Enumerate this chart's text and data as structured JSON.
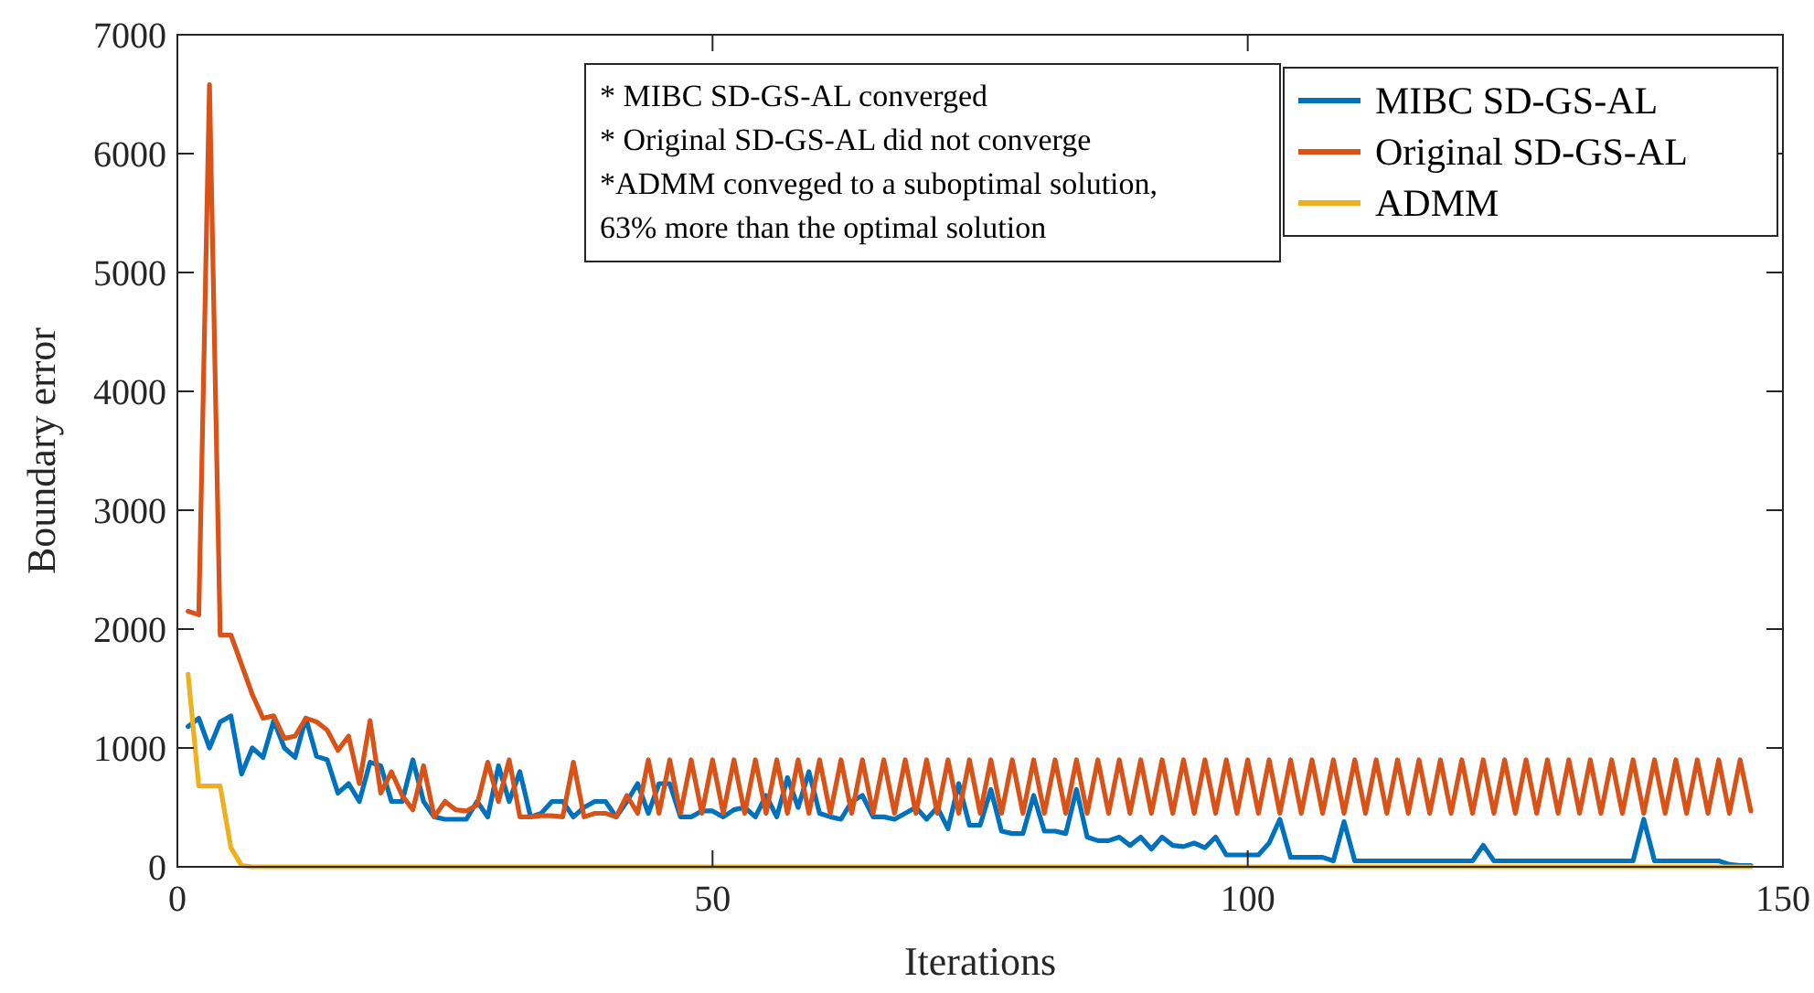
{
  "chart_data": {
    "type": "line",
    "xlabel": "Iterations",
    "ylabel": "Boundary error",
    "xlim": [
      0,
      150
    ],
    "xticks": [
      0,
      50,
      100,
      150
    ],
    "ylim": [
      0,
      7000
    ],
    "yticks": [
      0,
      1000,
      2000,
      3000,
      4000,
      5000,
      6000,
      7000
    ],
    "grid": false,
    "legend": "top right",
    "line_style": "solid",
    "marker": "none",
    "x": [
      1,
      2,
      3,
      4,
      5,
      6,
      7,
      8,
      9,
      10,
      11,
      12,
      13,
      14,
      15,
      16,
      17,
      18,
      19,
      20,
      21,
      22,
      23,
      24,
      25,
      26,
      27,
      28,
      29,
      30,
      31,
      32,
      33,
      34,
      35,
      36,
      37,
      38,
      39,
      40,
      41,
      42,
      43,
      44,
      45,
      46,
      47,
      48,
      49,
      50,
      51,
      52,
      53,
      54,
      55,
      56,
      57,
      58,
      59,
      60,
      61,
      62,
      63,
      64,
      65,
      66,
      67,
      68,
      69,
      70,
      71,
      72,
      73,
      74,
      75,
      76,
      77,
      78,
      79,
      80,
      81,
      82,
      83,
      84,
      85,
      86,
      87,
      88,
      89,
      90,
      91,
      92,
      93,
      94,
      95,
      96,
      97,
      98,
      99,
      100,
      101,
      102,
      103,
      104,
      105,
      106,
      107,
      108,
      109,
      110,
      111,
      112,
      113,
      114,
      115,
      116,
      117,
      118,
      119,
      120,
      121,
      122,
      123,
      124,
      125,
      126,
      127,
      128,
      129,
      130,
      131,
      132,
      133,
      134,
      135,
      136,
      137,
      138,
      139,
      140,
      141,
      142,
      143,
      144,
      145,
      146,
      147
    ],
    "series": [
      {
        "name": "MIBC SD-GS-AL",
        "color": "#0072bd",
        "values": [
          1180,
          1250,
          1000,
          1220,
          1270,
          780,
          1000,
          920,
          1230,
          1000,
          920,
          1250,
          930,
          900,
          620,
          700,
          550,
          880,
          850,
          550,
          550,
          900,
          550,
          420,
          400,
          400,
          400,
          550,
          420,
          850,
          550,
          800,
          420,
          450,
          550,
          550,
          420,
          500,
          550,
          550,
          420,
          550,
          700,
          450,
          700,
          700,
          420,
          420,
          470,
          470,
          420,
          480,
          500,
          420,
          600,
          420,
          750,
          500,
          800,
          450,
          420,
          400,
          550,
          600,
          420,
          420,
          400,
          450,
          500,
          400,
          500,
          320,
          700,
          350,
          350,
          650,
          300,
          280,
          280,
          600,
          300,
          300,
          280,
          650,
          250,
          220,
          220,
          250,
          180,
          250,
          150,
          250,
          180,
          170,
          200,
          160,
          250,
          100,
          100,
          100,
          100,
          200,
          400,
          80,
          80,
          80,
          80,
          50,
          380,
          50,
          50,
          50,
          50,
          50,
          50,
          50,
          50,
          50,
          50,
          50,
          50,
          180,
          50,
          50,
          50,
          50,
          50,
          50,
          50,
          50,
          50,
          50,
          50,
          50,
          50,
          50,
          400,
          50,
          50,
          50,
          50,
          50,
          50,
          50,
          20,
          10,
          10
        ]
      },
      {
        "name": "Original SD-GS-AL",
        "color": "#d95319",
        "values": [
          2150,
          2120,
          6580,
          1950,
          1950,
          1700,
          1450,
          1250,
          1270,
          1080,
          1100,
          1250,
          1220,
          1150,
          980,
          1100,
          700,
          1230,
          620,
          800,
          600,
          480,
          850,
          420,
          550,
          480,
          470,
          520,
          880,
          550,
          900,
          420,
          420,
          430,
          430,
          420,
          880,
          420,
          450,
          450,
          420,
          600,
          450,
          900,
          450,
          900,
          450,
          900,
          450,
          900,
          450,
          900,
          450,
          900,
          450,
          900,
          450,
          900,
          450,
          900,
          450,
          900,
          450,
          900,
          450,
          900,
          450,
          900,
          450,
          900,
          450,
          900,
          450,
          900,
          450,
          900,
          450,
          900,
          450,
          900,
          450,
          900,
          450,
          900,
          450,
          900,
          450,
          900,
          450,
          900,
          450,
          900,
          450,
          900,
          450,
          900,
          450,
          900,
          450,
          900,
          450,
          900,
          450,
          900,
          450,
          900,
          450,
          900,
          450,
          900,
          450,
          900,
          450,
          900,
          450,
          900,
          450,
          900,
          450,
          900,
          450,
          900,
          450,
          900,
          450,
          900,
          450,
          900,
          450,
          900,
          450,
          900,
          450,
          900,
          450,
          900,
          450,
          900,
          450,
          900,
          450,
          900,
          450,
          900,
          450,
          900,
          470
        ]
      },
      {
        "name": "ADMM",
        "color": "#edb120",
        "values": [
          1620,
          680,
          680,
          680,
          160,
          10,
          0,
          0,
          0,
          0,
          0,
          0,
          0,
          0,
          0,
          0,
          0,
          0,
          0,
          0,
          0,
          0,
          0,
          0,
          0,
          0,
          0,
          0,
          0,
          0,
          0,
          0,
          0,
          0,
          0,
          0,
          0,
          0,
          0,
          0,
          0,
          0,
          0,
          0,
          0,
          0,
          0,
          0,
          0,
          0,
          0,
          0,
          0,
          0,
          0,
          0,
          0,
          0,
          0,
          0,
          0,
          0,
          0,
          0,
          0,
          0,
          0,
          0,
          0,
          0,
          0,
          0,
          0,
          0,
          0,
          0,
          0,
          0,
          0,
          0,
          0,
          0,
          0,
          0,
          0,
          0,
          0,
          0,
          0,
          0,
          0,
          0,
          0,
          0,
          0,
          0,
          0,
          0,
          0,
          0,
          0,
          0,
          0,
          0,
          0,
          0,
          0,
          0,
          0,
          0,
          0,
          0,
          0,
          0,
          0,
          0,
          0,
          0,
          0,
          0,
          0,
          0,
          0,
          0,
          0,
          0,
          0,
          0,
          0,
          0,
          0,
          0,
          0,
          0,
          0,
          0,
          0,
          0,
          0,
          0,
          0,
          0,
          0,
          0,
          0,
          0,
          0
        ]
      }
    ],
    "annotations": [
      "* MIBC SD-GS-AL converged",
      "* Original SD-GS-AL did not converge",
      "*ADMM conveged to a suboptimal solution,",
      "63% more than the optimal solution"
    ]
  }
}
